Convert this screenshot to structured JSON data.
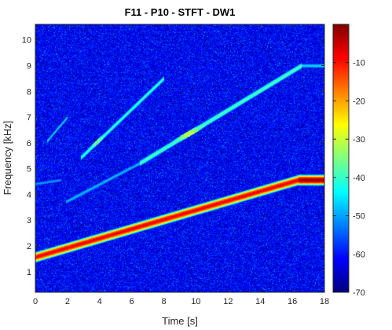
{
  "chart_data": {
    "type": "heatmap",
    "title": "F11 - P10 - STFT - DW1",
    "xlabel": "Time [s]",
    "ylabel": "Frequency [kHz]",
    "xlim": [
      0,
      18
    ],
    "ylim": [
      0.2,
      10.6
    ],
    "xticks": [
      "0",
      "2",
      "4",
      "6",
      "8",
      "10",
      "12",
      "14",
      "16",
      "18"
    ],
    "yticks": [
      "1",
      "2",
      "3",
      "4",
      "5",
      "6",
      "7",
      "8",
      "9",
      "10"
    ],
    "colorbar": {
      "range": [
        -70,
        0
      ],
      "ticks": [
        "-10",
        "-20",
        "-30",
        "-40",
        "-50",
        "-60",
        "-70"
      ],
      "colormap": "jet"
    },
    "noise_floor_db": -62,
    "tracks": [
      {
        "t0": 0.0,
        "f0": 1.55,
        "t1": 16.4,
        "f1": 4.55,
        "db": -8,
        "width_khz": 0.14
      },
      {
        "t0": 16.4,
        "f0": 4.55,
        "t1": 18.0,
        "f1": 4.55,
        "db": -2,
        "width_khz": 0.14
      },
      {
        "t0": 0.0,
        "f0": 4.4,
        "t1": 1.6,
        "f1": 4.55,
        "db": -50,
        "width_khz": 0.08
      },
      {
        "t0": 1.9,
        "f0": 3.7,
        "t1": 6.5,
        "f1": 5.2,
        "db": -48,
        "width_khz": 0.1
      },
      {
        "t0": 6.5,
        "f0": 5.2,
        "t1": 16.6,
        "f1": 9.0,
        "db": -38,
        "width_khz": 0.12
      },
      {
        "t0": 16.6,
        "f0": 9.0,
        "t1": 18.0,
        "f1": 9.0,
        "db": -46,
        "width_khz": 0.1
      },
      {
        "t0": 2.8,
        "f0": 5.4,
        "t1": 8.0,
        "f1": 8.5,
        "db": -40,
        "width_khz": 0.11
      },
      {
        "t0": 0.7,
        "f0": 6.05,
        "t1": 2.0,
        "f1": 7.0,
        "db": -46,
        "width_khz": 0.09
      }
    ],
    "hotspots": [
      {
        "t": 3.6,
        "f": 6.1,
        "db": -30,
        "spread": [
          0.7,
          0.25
        ]
      },
      {
        "t": 9.6,
        "f": 6.35,
        "db": -28,
        "spread": [
          1.3,
          0.3
        ]
      },
      {
        "t": 0.4,
        "f": 6.05,
        "db": -45,
        "spread": [
          0.5,
          0.15
        ]
      }
    ]
  }
}
